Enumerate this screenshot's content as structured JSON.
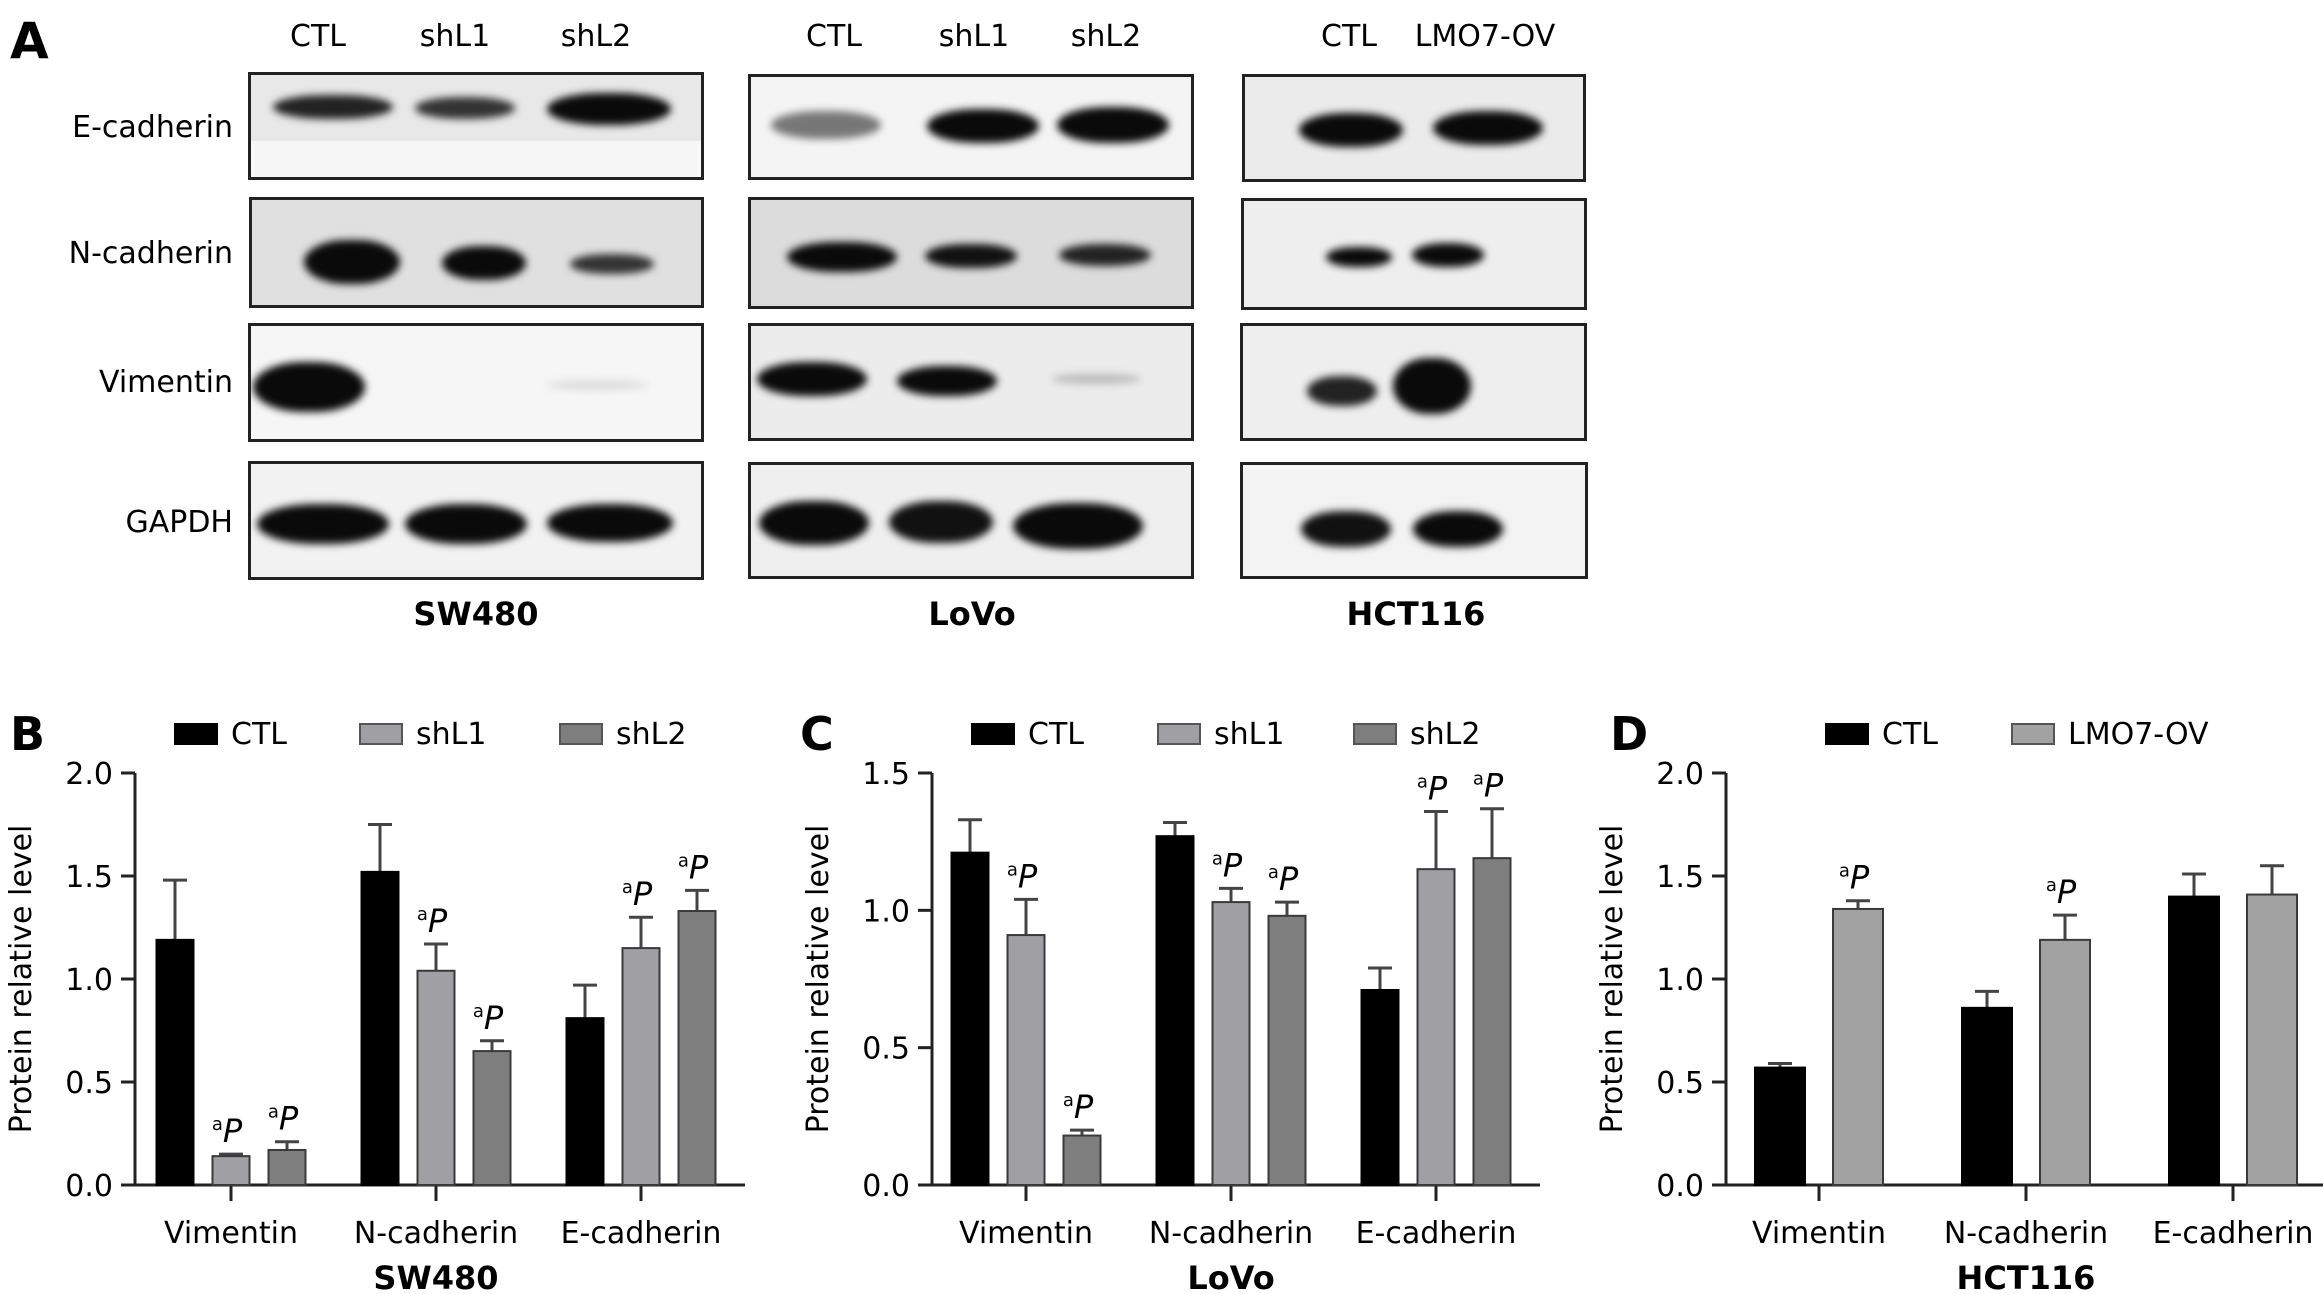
{
  "panel_a": {
    "letter": "A",
    "row_labels": [
      "E-cadherin",
      "N-cadherin",
      "Vimentin",
      "GAPDH"
    ],
    "blots": [
      {
        "cell_line": "SW480",
        "lanes": [
          "CTL",
          "shL1",
          "shL2"
        ]
      },
      {
        "cell_line": "LoVo",
        "lanes": [
          "CTL",
          "shL1",
          "shL2"
        ]
      },
      {
        "cell_line": "HCT116",
        "lanes": [
          "CTL",
          "LMO7-OV"
        ]
      }
    ]
  },
  "colors": {
    "CTL": "#000000",
    "shL1": "#a0a0a4",
    "shL2": "#7e7e7e",
    "LMO7-OV": "#a2a2a2",
    "axis": "#222222"
  },
  "chart_data": [
    {
      "panel": "B",
      "type": "bar",
      "title": "SW480",
      "xlabel": "SW480",
      "ylabel": "Protein relative level",
      "ylim": [
        0,
        2.0
      ],
      "yticks": [
        "0.0",
        "0.5",
        "1.0",
        "1.5",
        "2.0"
      ],
      "categories": [
        "Vimentin",
        "N-cadherin",
        "E-cadherin"
      ],
      "legend": [
        "CTL",
        "shL1",
        "shL2"
      ],
      "legend_position": "top",
      "grid": false,
      "series": [
        {
          "name": "CTL",
          "values": [
            1.19,
            1.52,
            0.81
          ],
          "errors": [
            0.29,
            0.23,
            0.16
          ],
          "sig": [
            false,
            false,
            false
          ]
        },
        {
          "name": "shL1",
          "values": [
            0.14,
            1.04,
            1.15
          ],
          "errors": [
            0.01,
            0.13,
            0.15
          ],
          "sig": [
            true,
            true,
            true
          ]
        },
        {
          "name": "shL2",
          "values": [
            0.17,
            0.65,
            1.33
          ],
          "errors": [
            0.04,
            0.05,
            0.1
          ],
          "sig": [
            true,
            true,
            true
          ]
        }
      ],
      "annotation": "aP"
    },
    {
      "panel": "C",
      "type": "bar",
      "title": "LoVo",
      "xlabel": "LoVo",
      "ylabel": "Protein relative level",
      "ylim": [
        0,
        1.5
      ],
      "yticks": [
        "0.0",
        "0.5",
        "1.0",
        "1.5"
      ],
      "categories": [
        "Vimentin",
        "N-cadherin",
        "E-cadherin"
      ],
      "legend": [
        "CTL",
        "shL1",
        "shL2"
      ],
      "legend_position": "top",
      "grid": false,
      "series": [
        {
          "name": "CTL",
          "values": [
            1.21,
            1.27,
            0.71
          ],
          "errors": [
            0.12,
            0.05,
            0.08
          ],
          "sig": [
            false,
            false,
            false
          ]
        },
        {
          "name": "shL1",
          "values": [
            0.91,
            1.03,
            1.15
          ],
          "errors": [
            0.13,
            0.05,
            0.21
          ],
          "sig": [
            true,
            true,
            true
          ]
        },
        {
          "name": "shL2",
          "values": [
            0.18,
            0.98,
            1.19
          ],
          "errors": [
            0.02,
            0.05,
            0.18
          ],
          "sig": [
            true,
            true,
            true
          ]
        }
      ],
      "annotation": "aP"
    },
    {
      "panel": "D",
      "type": "bar",
      "title": "HCT116",
      "xlabel": "HCT116",
      "ylabel": "Protein relative level",
      "ylim": [
        0,
        2.0
      ],
      "yticks": [
        "0.0",
        "0.5",
        "1.0",
        "1.5",
        "2.0"
      ],
      "categories": [
        "Vimentin",
        "N-cadherin",
        "E-cadherin"
      ],
      "legend": [
        "CTL",
        "LMO7-OV"
      ],
      "legend_position": "top",
      "grid": false,
      "series": [
        {
          "name": "CTL",
          "values": [
            0.57,
            0.86,
            1.4
          ],
          "errors": [
            0.02,
            0.08,
            0.11
          ],
          "sig": [
            false,
            false,
            false
          ]
        },
        {
          "name": "LMO7-OV",
          "values": [
            1.34,
            1.19,
            1.41
          ],
          "errors": [
            0.04,
            0.12,
            0.14
          ],
          "sig": [
            true,
            true,
            false
          ]
        }
      ],
      "annotation": "aP"
    }
  ]
}
